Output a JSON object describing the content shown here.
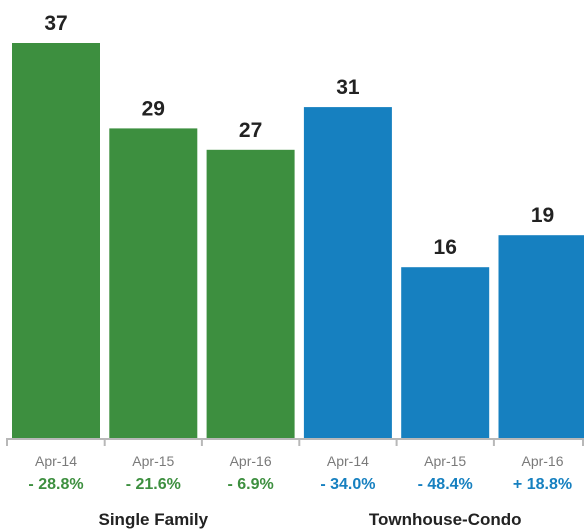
{
  "chart_data": {
    "type": "bar",
    "ylim": [
      0,
      37
    ],
    "grid": false,
    "groups": [
      {
        "name": "Single Family",
        "color": "#3d8f3f",
        "label_color": "#3d8f3f",
        "categories": [
          "Apr-14",
          "Apr-15",
          "Apr-16"
        ],
        "values": [
          37,
          29,
          27
        ],
        "changes": [
          "- 28.8%",
          "- 21.6%",
          "- 6.9%"
        ]
      },
      {
        "name": "Townhouse-Condo",
        "color": "#1680c0",
        "label_color": "#1680c0",
        "categories": [
          "Apr-14",
          "Apr-15",
          "Apr-16"
        ],
        "values": [
          31,
          16,
          19
        ],
        "changes": [
          "- 34.0%",
          "- 48.4%",
          "+ 18.8%"
        ]
      }
    ]
  }
}
